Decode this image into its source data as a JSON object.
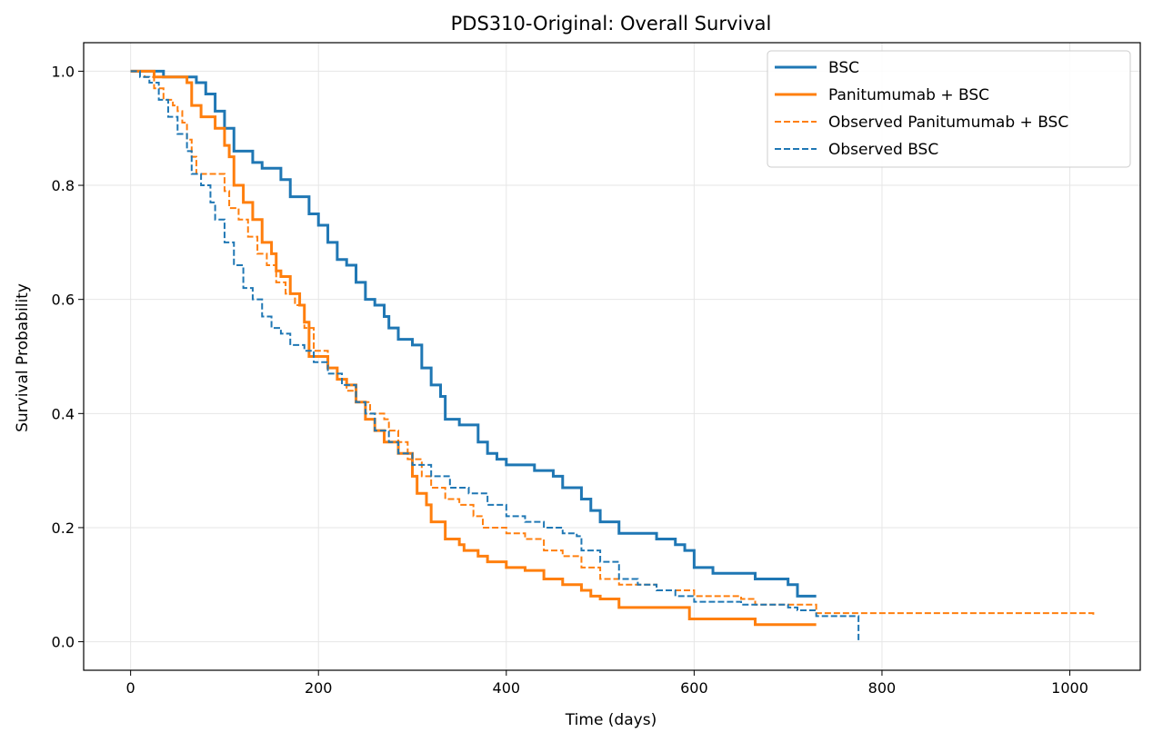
{
  "chart_data": {
    "type": "line",
    "title": "PDS310-Original: Overall Survival",
    "xlabel": "Time (days)",
    "ylabel": "Survival Probability",
    "xlim": [
      -50,
      1075
    ],
    "ylim": [
      -0.05,
      1.05
    ],
    "xticks": [
      0,
      200,
      400,
      600,
      800,
      1000
    ],
    "yticks": [
      0.0,
      0.2,
      0.4,
      0.6,
      0.8,
      1.0
    ],
    "xtick_labels": [
      "0",
      "200",
      "400",
      "600",
      "800",
      "1000"
    ],
    "ytick_labels": [
      "0.0",
      "0.2",
      "0.4",
      "0.6",
      "0.8",
      "1.0"
    ],
    "grid": true,
    "legend_position": "top-right",
    "series": [
      {
        "name": "BSC",
        "color": "#1f77b4",
        "style": "solid",
        "points": [
          [
            0,
            1.0
          ],
          [
            35,
            1.0
          ],
          [
            35,
            0.99
          ],
          [
            70,
            0.98
          ],
          [
            80,
            0.96
          ],
          [
            90,
            0.93
          ],
          [
            100,
            0.9
          ],
          [
            110,
            0.86
          ],
          [
            130,
            0.84
          ],
          [
            140,
            0.83
          ],
          [
            150,
            0.83
          ],
          [
            160,
            0.81
          ],
          [
            170,
            0.78
          ],
          [
            185,
            0.78
          ],
          [
            190,
            0.75
          ],
          [
            200,
            0.73
          ],
          [
            210,
            0.7
          ],
          [
            220,
            0.67
          ],
          [
            230,
            0.66
          ],
          [
            240,
            0.63
          ],
          [
            250,
            0.6
          ],
          [
            260,
            0.59
          ],
          [
            270,
            0.57
          ],
          [
            275,
            0.55
          ],
          [
            285,
            0.53
          ],
          [
            300,
            0.52
          ],
          [
            310,
            0.48
          ],
          [
            320,
            0.45
          ],
          [
            330,
            0.43
          ],
          [
            335,
            0.39
          ],
          [
            350,
            0.38
          ],
          [
            370,
            0.35
          ],
          [
            380,
            0.33
          ],
          [
            390,
            0.32
          ],
          [
            400,
            0.31
          ],
          [
            430,
            0.3
          ],
          [
            450,
            0.29
          ],
          [
            460,
            0.27
          ],
          [
            480,
            0.25
          ],
          [
            490,
            0.23
          ],
          [
            500,
            0.21
          ],
          [
            520,
            0.19
          ],
          [
            540,
            0.19
          ],
          [
            560,
            0.18
          ],
          [
            580,
            0.17
          ],
          [
            590,
            0.16
          ],
          [
            600,
            0.13
          ],
          [
            620,
            0.12
          ],
          [
            650,
            0.12
          ],
          [
            665,
            0.11
          ],
          [
            700,
            0.1
          ],
          [
            710,
            0.08
          ],
          [
            730,
            0.08
          ]
        ]
      },
      {
        "name": "Panitumumab + BSC",
        "color": "#ff7f0e",
        "style": "solid",
        "points": [
          [
            0,
            1.0
          ],
          [
            20,
            1.0
          ],
          [
            25,
            0.99
          ],
          [
            60,
            0.98
          ],
          [
            65,
            0.94
          ],
          [
            75,
            0.92
          ],
          [
            90,
            0.9
          ],
          [
            100,
            0.87
          ],
          [
            105,
            0.85
          ],
          [
            110,
            0.8
          ],
          [
            120,
            0.77
          ],
          [
            130,
            0.74
          ],
          [
            140,
            0.7
          ],
          [
            150,
            0.68
          ],
          [
            155,
            0.65
          ],
          [
            160,
            0.64
          ],
          [
            170,
            0.61
          ],
          [
            180,
            0.59
          ],
          [
            185,
            0.56
          ],
          [
            190,
            0.5
          ],
          [
            210,
            0.48
          ],
          [
            220,
            0.46
          ],
          [
            230,
            0.45
          ],
          [
            240,
            0.42
          ],
          [
            250,
            0.39
          ],
          [
            260,
            0.37
          ],
          [
            270,
            0.35
          ],
          [
            285,
            0.33
          ],
          [
            300,
            0.29
          ],
          [
            305,
            0.26
          ],
          [
            315,
            0.24
          ],
          [
            320,
            0.21
          ],
          [
            335,
            0.18
          ],
          [
            350,
            0.17
          ],
          [
            355,
            0.16
          ],
          [
            370,
            0.15
          ],
          [
            380,
            0.14
          ],
          [
            400,
            0.13
          ],
          [
            420,
            0.125
          ],
          [
            440,
            0.11
          ],
          [
            460,
            0.1
          ],
          [
            480,
            0.09
          ],
          [
            490,
            0.08
          ],
          [
            500,
            0.075
          ],
          [
            520,
            0.06
          ],
          [
            560,
            0.06
          ],
          [
            595,
            0.04
          ],
          [
            630,
            0.04
          ],
          [
            665,
            0.03
          ],
          [
            730,
            0.03
          ]
        ]
      },
      {
        "name": "Observed Panitumumab + BSC",
        "color": "#ff7f0e",
        "style": "dashed",
        "points": [
          [
            0,
            1.0
          ],
          [
            15,
            0.99
          ],
          [
            25,
            0.97
          ],
          [
            35,
            0.95
          ],
          [
            45,
            0.94
          ],
          [
            50,
            0.93
          ],
          [
            55,
            0.91
          ],
          [
            60,
            0.88
          ],
          [
            65,
            0.85
          ],
          [
            70,
            0.82
          ],
          [
            95,
            0.82
          ],
          [
            100,
            0.79
          ],
          [
            105,
            0.76
          ],
          [
            115,
            0.74
          ],
          [
            125,
            0.71
          ],
          [
            135,
            0.68
          ],
          [
            145,
            0.66
          ],
          [
            155,
            0.63
          ],
          [
            165,
            0.61
          ],
          [
            175,
            0.59
          ],
          [
            185,
            0.55
          ],
          [
            195,
            0.51
          ],
          [
            210,
            0.48
          ],
          [
            220,
            0.46
          ],
          [
            230,
            0.44
          ],
          [
            240,
            0.42
          ],
          [
            255,
            0.4
          ],
          [
            270,
            0.39
          ],
          [
            275,
            0.37
          ],
          [
            285,
            0.35
          ],
          [
            295,
            0.32
          ],
          [
            310,
            0.29
          ],
          [
            320,
            0.27
          ],
          [
            335,
            0.25
          ],
          [
            350,
            0.24
          ],
          [
            365,
            0.22
          ],
          [
            375,
            0.2
          ],
          [
            400,
            0.19
          ],
          [
            420,
            0.18
          ],
          [
            440,
            0.16
          ],
          [
            460,
            0.15
          ],
          [
            480,
            0.13
          ],
          [
            500,
            0.11
          ],
          [
            520,
            0.1
          ],
          [
            560,
            0.09
          ],
          [
            600,
            0.08
          ],
          [
            650,
            0.075
          ],
          [
            665,
            0.065
          ],
          [
            730,
            0.05
          ],
          [
            1025,
            0.045
          ]
        ]
      },
      {
        "name": "Observed BSC",
        "color": "#1f77b4",
        "style": "dashed",
        "points": [
          [
            0,
            1.0
          ],
          [
            10,
            0.99
          ],
          [
            20,
            0.98
          ],
          [
            30,
            0.95
          ],
          [
            40,
            0.92
          ],
          [
            50,
            0.89
          ],
          [
            60,
            0.86
          ],
          [
            65,
            0.82
          ],
          [
            75,
            0.8
          ],
          [
            85,
            0.77
          ],
          [
            90,
            0.74
          ],
          [
            100,
            0.7
          ],
          [
            110,
            0.66
          ],
          [
            120,
            0.62
          ],
          [
            130,
            0.6
          ],
          [
            140,
            0.57
          ],
          [
            150,
            0.55
          ],
          [
            160,
            0.54
          ],
          [
            170,
            0.52
          ],
          [
            185,
            0.51
          ],
          [
            195,
            0.49
          ],
          [
            210,
            0.47
          ],
          [
            225,
            0.45
          ],
          [
            240,
            0.42
          ],
          [
            250,
            0.4
          ],
          [
            260,
            0.37
          ],
          [
            275,
            0.35
          ],
          [
            285,
            0.33
          ],
          [
            300,
            0.31
          ],
          [
            320,
            0.29
          ],
          [
            340,
            0.27
          ],
          [
            360,
            0.26
          ],
          [
            380,
            0.24
          ],
          [
            400,
            0.22
          ],
          [
            420,
            0.21
          ],
          [
            440,
            0.2
          ],
          [
            460,
            0.19
          ],
          [
            475,
            0.185
          ],
          [
            480,
            0.16
          ],
          [
            500,
            0.14
          ],
          [
            520,
            0.11
          ],
          [
            540,
            0.1
          ],
          [
            560,
            0.09
          ],
          [
            580,
            0.08
          ],
          [
            600,
            0.07
          ],
          [
            650,
            0.065
          ],
          [
            700,
            0.06
          ],
          [
            710,
            0.055
          ],
          [
            730,
            0.045
          ],
          [
            775,
            0.04
          ],
          [
            775,
            0.0
          ]
        ]
      }
    ]
  }
}
